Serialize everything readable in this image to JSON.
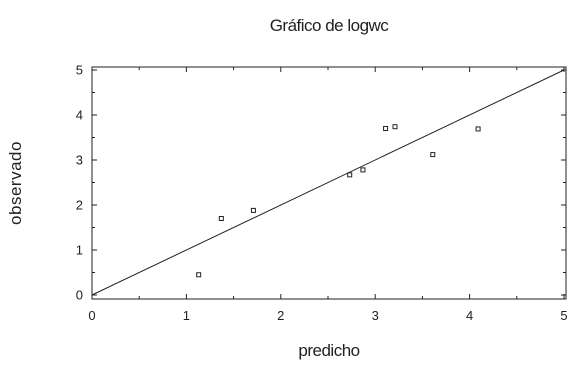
{
  "chart_data": {
    "type": "scatter",
    "title": "Gráfico de logwc",
    "xlabel": "predicho",
    "ylabel": "observado",
    "xlim": [
      0,
      5
    ],
    "ylim": [
      0,
      5
    ],
    "xticks": [
      "0",
      "1",
      "2",
      "3",
      "4",
      "5"
    ],
    "yticks": [
      "0",
      "1",
      "2",
      "3",
      "4",
      "5"
    ],
    "grid": false,
    "series": [
      {
        "points": [
          {
            "x": 1.13,
            "y": 0.45
          },
          {
            "x": 1.37,
            "y": 1.7
          },
          {
            "x": 1.71,
            "y": 1.88
          },
          {
            "x": 2.73,
            "y": 2.67
          },
          {
            "x": 2.87,
            "y": 2.78
          },
          {
            "x": 3.11,
            "y": 3.7
          },
          {
            "x": 3.21,
            "y": 3.74
          },
          {
            "x": 3.61,
            "y": 3.12
          },
          {
            "x": 4.09,
            "y": 3.69
          }
        ]
      }
    ],
    "reference_line": {
      "from": [
        0,
        0
      ],
      "to": [
        5,
        5
      ]
    }
  }
}
